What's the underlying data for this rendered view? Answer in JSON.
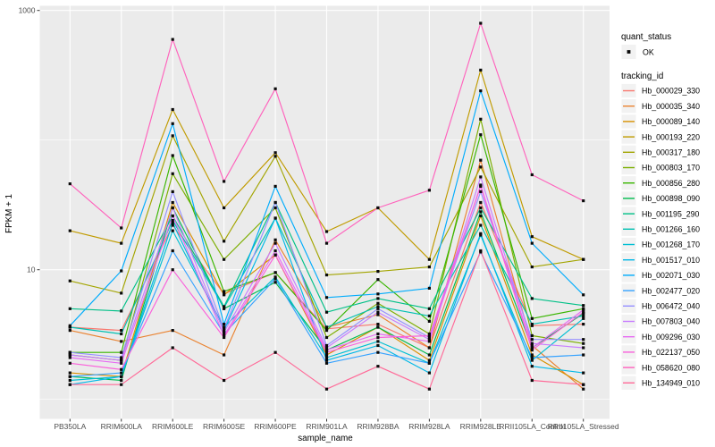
{
  "labels": {
    "y_axis_title": "FPKM + 1",
    "x_axis_title": "sample_name",
    "legend_quant_title": "quant_status",
    "legend_quant_ok": "OK",
    "legend_tracking_title": "tracking_id"
  },
  "colors": {
    "panel_background": "#EBEBEB",
    "grid": "#FFFFFF",
    "tick": "#333333",
    "axis_text": "#4D4D4D",
    "point": "#0a0a0a",
    "legend_key_background": "#F2F2F2"
  },
  "chart_data": {
    "type": "line",
    "title": "",
    "xlabel": "sample_name",
    "ylabel": "FPKM + 1",
    "y_scale": "log10",
    "y_major_ticks": [
      1000,
      10
    ],
    "y_tick_labels": [
      "1000",
      "10"
    ],
    "y_minor_gridlines": [
      100,
      1
    ],
    "ylim_log10": [
      -0.15,
      3.04
    ],
    "grid": "white major and minor on gray panel",
    "legend_position": "right",
    "point_marker": "small black square (quant_status = OK)",
    "categories": [
      "PB350LA",
      "RRIM600LA",
      "RRIM600LE",
      "RRIM600SE",
      "RRIM600PE",
      "RRIM901LA",
      "RRIM928BA",
      "RRIM928LA",
      "RRIM928LE",
      "RRII105LA_Control",
      "RRII105LA_Stressed"
    ],
    "quant_status_values": [
      "OK"
    ],
    "series": [
      {
        "name": "Hb_000029_330",
        "color": "#F8766D",
        "values": [
          3.6,
          3.4,
          22,
          6.5,
          9.5,
          3.5,
          3.8,
          2.5,
          33,
          3.7,
          3.8
        ]
      },
      {
        "name": "Hb_000035_340",
        "color": "#EA8331",
        "values": [
          3.4,
          2.8,
          3.4,
          2.2,
          17,
          3.6,
          4.5,
          2.5,
          70,
          2.6,
          1.2
        ]
      },
      {
        "name": "Hb_000089_140",
        "color": "#D89000",
        "values": [
          1.6,
          1.5,
          33,
          6.4,
          13,
          2.2,
          3.6,
          2.0,
          26,
          2.2,
          1.3
        ]
      },
      {
        "name": "Hb_000193_220",
        "color": "#C09B00",
        "values": [
          20,
          16,
          172,
          30,
          80,
          19.7,
          30,
          12,
          347,
          18,
          12
        ]
      },
      {
        "name": "Hb_000317_180",
        "color": "#A3A500",
        "values": [
          8.2,
          6.6,
          108,
          16.6,
          75,
          9.1,
          9.7,
          10.5,
          62,
          10.5,
          12
        ]
      },
      {
        "name": "Hb_000803_170",
        "color": "#7CAE00",
        "values": [
          2.2,
          2.0,
          55,
          12,
          30,
          3.0,
          5.5,
          3.2,
          145,
          3.1,
          2.7
        ]
      },
      {
        "name": "Hb_000856_280",
        "color": "#39B600",
        "values": [
          2.3,
          2.3,
          76,
          6.8,
          9.5,
          3.4,
          8.4,
          4.0,
          110,
          4.2,
          5.0
        ]
      },
      {
        "name": "Hb_000898_090",
        "color": "#00BB4E",
        "values": [
          1.5,
          1.4,
          30,
          5.0,
          8.0,
          2.4,
          3.6,
          2.2,
          28,
          2.5,
          4.6
        ]
      },
      {
        "name": "Hb_001195_290",
        "color": "#00C087",
        "values": [
          5.0,
          4.8,
          26,
          5.2,
          33,
          4.7,
          6.0,
          5.0,
          30,
          6.0,
          5.3
        ]
      },
      {
        "name": "Hb_001266_160",
        "color": "#00C0B2",
        "values": [
          3.6,
          3.2,
          24,
          5.1,
          25,
          3.6,
          5.2,
          4.4,
          22,
          3.8,
          4.4
        ]
      },
      {
        "name": "Hb_001268_170",
        "color": "#00BFD3",
        "values": [
          1.4,
          1.5,
          20,
          3.6,
          8.8,
          2.1,
          2.8,
          1.9,
          18.5,
          2.0,
          4.2
        ]
      },
      {
        "name": "Hb_001517_010",
        "color": "#00B8E7",
        "values": [
          1.3,
          1.5,
          23,
          3.4,
          25,
          2.0,
          2.6,
          1.6,
          19,
          1.8,
          1.6
        ]
      },
      {
        "name": "Hb_002071_030",
        "color": "#00ACFC",
        "values": [
          3.7,
          9.8,
          134,
          3.8,
          44,
          6.1,
          6.5,
          7.2,
          240,
          16,
          6.4
        ]
      },
      {
        "name": "Hb_002477_020",
        "color": "#35A2FF",
        "values": [
          1.5,
          1.6,
          14,
          3.2,
          8.5,
          1.9,
          2.3,
          1.9,
          13.7,
          2.1,
          2.2
        ]
      },
      {
        "name": "Hb_006472_040",
        "color": "#9590FF",
        "values": [
          2.3,
          2.1,
          40,
          3.5,
          33,
          2.6,
          5.0,
          3.0,
          40,
          2.9,
          2.9
        ]
      },
      {
        "name": "Hb_007803_040",
        "color": "#C77CFF",
        "values": [
          2.2,
          2.0,
          30,
          3.3,
          16,
          2.5,
          4.7,
          2.9,
          52,
          2.7,
          2.5
        ]
      },
      {
        "name": "Hb_009296_030",
        "color": "#E76BF3",
        "values": [
          2.1,
          1.9,
          26,
          3.1,
          14,
          2.4,
          3.2,
          2.8,
          45,
          2.5,
          4.9
        ]
      },
      {
        "name": "Hb_022137_050",
        "color": "#FA62DB",
        "values": [
          1.9,
          1.7,
          10,
          3.0,
          13,
          2.3,
          3.0,
          3.1,
          44,
          2.4,
          4.7
        ]
      },
      {
        "name": "Hb_058620_080",
        "color": "#FF62BC",
        "values": [
          46,
          21,
          598,
          48,
          249,
          16,
          30,
          41,
          797,
          54,
          34
        ]
      },
      {
        "name": "Hb_134949_010",
        "color": "#FF6A98",
        "values": [
          1.3,
          1.3,
          2.5,
          1.4,
          2.3,
          1.2,
          1.8,
          1.2,
          14,
          1.4,
          1.3
        ]
      }
    ]
  }
}
